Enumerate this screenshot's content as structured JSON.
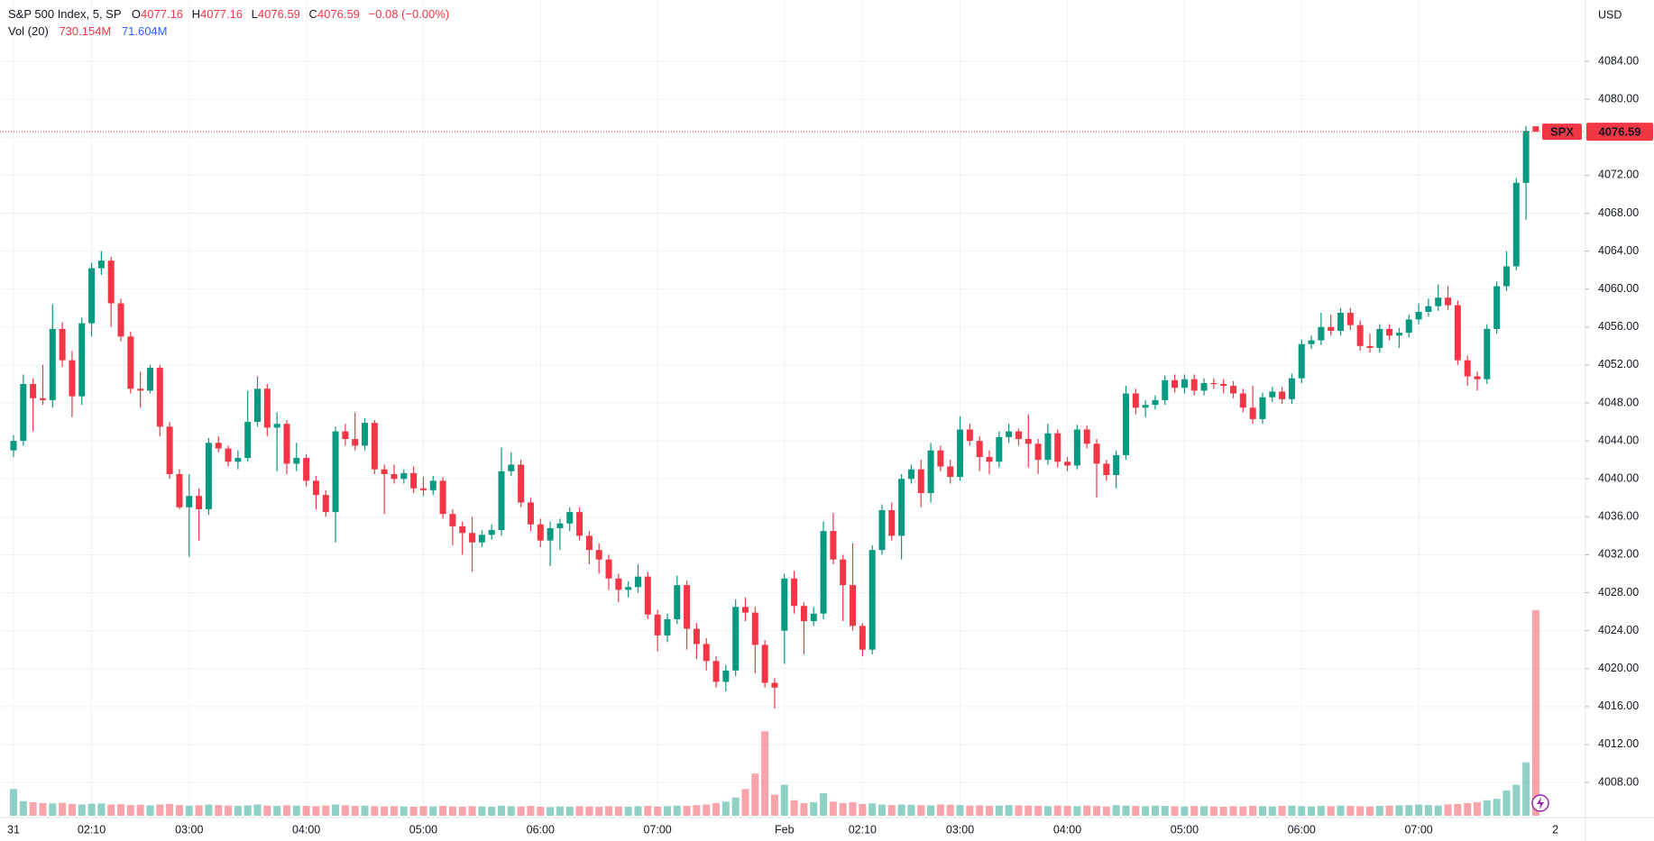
{
  "chart_data": {
    "type": "candlestick",
    "title": "S&P 500 Index, 5, SP",
    "ohlc_keys": [
      "O",
      "H",
      "L",
      "C"
    ],
    "change_label": "−0.08 (−0.00%)",
    "volume_title": "Vol (20)",
    "currency": "USD",
    "last_price_symbol": "SPX",
    "up_color": "#089981",
    "down_color": "#f23645",
    "ma_color": "#2962ff",
    "grid": true,
    "ylim": [
      4004.3,
      4089.9
    ],
    "yticks": [
      {
        "value": 4008,
        "label": "4008.00"
      },
      {
        "value": 4012,
        "label": "4012.00"
      },
      {
        "value": 4016,
        "label": "4016.00"
      },
      {
        "value": 4020,
        "label": "4020.00"
      },
      {
        "value": 4024,
        "label": "4024.00"
      },
      {
        "value": 4028,
        "label": "4028.00"
      },
      {
        "value": 4032,
        "label": "4032.00"
      },
      {
        "value": 4036,
        "label": "4036.00"
      },
      {
        "value": 4040,
        "label": "4040.00"
      },
      {
        "value": 4044,
        "label": "4044.00"
      },
      {
        "value": 4048,
        "label": "4048.00"
      },
      {
        "value": 4052,
        "label": "4052.00"
      },
      {
        "value": 4056,
        "label": "4056.00"
      },
      {
        "value": 4060,
        "label": "4060.00"
      },
      {
        "value": 4064,
        "label": "4064.00"
      },
      {
        "value": 4068,
        "label": "4068.00"
      },
      {
        "value": 4072,
        "label": "4072.00"
      },
      {
        "value": 4076,
        "label": "4076.00"
      },
      {
        "value": 4080,
        "label": "4080.00"
      },
      {
        "value": 4084,
        "label": "4084.00"
      }
    ],
    "categories": [
      "31",
      null,
      null,
      null,
      null,
      null,
      null,
      null,
      "02:10",
      null,
      null,
      null,
      null,
      null,
      null,
      null,
      null,
      null,
      "03:00",
      null,
      null,
      null,
      null,
      null,
      null,
      null,
      null,
      null,
      null,
      null,
      "04:00",
      null,
      null,
      null,
      null,
      null,
      null,
      null,
      null,
      null,
      null,
      null,
      "05:00",
      null,
      null,
      null,
      null,
      null,
      null,
      null,
      null,
      null,
      null,
      null,
      "06:00",
      null,
      null,
      null,
      null,
      null,
      null,
      null,
      null,
      null,
      null,
      null,
      "07:00",
      null,
      null,
      null,
      null,
      null,
      null,
      null,
      null,
      null,
      null,
      null,
      null,
      "Feb",
      null,
      null,
      null,
      null,
      null,
      null,
      null,
      "02:10",
      null,
      null,
      null,
      null,
      null,
      null,
      null,
      null,
      null,
      "03:00",
      null,
      null,
      null,
      null,
      null,
      null,
      null,
      null,
      null,
      null,
      "04:00",
      null,
      null,
      null,
      null,
      null,
      null,
      null,
      null,
      null,
      null,
      null,
      "05:00",
      null,
      null,
      null,
      null,
      null,
      null,
      null,
      null,
      null,
      null,
      null,
      "06:00",
      null,
      null,
      null,
      null,
      null,
      null,
      null,
      null,
      null,
      null,
      null,
      "07:00",
      null,
      null,
      null,
      null,
      null,
      null,
      null,
      null,
      null,
      null,
      null,
      null
    ],
    "trailing_label": "2",
    "ohlc": [
      [
        4043.0,
        4044.6,
        4042.3,
        4044.0
      ],
      [
        4044.0,
        4051.0,
        4043.5,
        4050.0
      ],
      [
        4050.0,
        4050.6,
        4045.0,
        4048.5
      ],
      [
        4048.5,
        4052.0,
        4047.8,
        4048.3
      ],
      [
        4048.3,
        4058.4,
        4047.5,
        4055.8
      ],
      [
        4055.8,
        4056.5,
        4051.8,
        4052.5
      ],
      [
        4052.5,
        4053.5,
        4046.5,
        4048.7
      ],
      [
        4048.7,
        4057.0,
        4047.8,
        4056.4
      ],
      [
        4056.4,
        4062.8,
        4055.0,
        4062.2
      ],
      [
        4062.2,
        4064.0,
        4061.5,
        4063.0
      ],
      [
        4063.0,
        4063.4,
        4056.0,
        4058.5
      ],
      [
        4058.5,
        4059.0,
        4054.5,
        4055.0
      ],
      [
        4055.0,
        4055.5,
        4049.0,
        4049.5
      ],
      [
        4049.5,
        4051.3,
        4047.5,
        4049.3
      ],
      [
        4049.3,
        4052.0,
        4049.0,
        4051.7
      ],
      [
        4051.7,
        4052.0,
        4044.5,
        4045.5
      ],
      [
        4045.5,
        4046.0,
        4040.0,
        4040.5
      ],
      [
        4040.5,
        4041.0,
        4036.8,
        4037.0
      ],
      [
        4037.0,
        4040.5,
        4031.8,
        4038.2
      ],
      [
        4038.2,
        4039.0,
        4033.5,
        4036.8
      ],
      [
        4036.8,
        4044.3,
        4036.2,
        4043.8
      ],
      [
        4043.8,
        4044.5,
        4042.8,
        4043.2
      ],
      [
        4043.2,
        4043.5,
        4041.3,
        4041.8
      ],
      [
        4041.8,
        4043.0,
        4041.0,
        4042.2
      ],
      [
        4042.2,
        4049.3,
        4041.8,
        4046.0
      ],
      [
        4046.0,
        4050.8,
        4045.5,
        4049.5
      ],
      [
        4049.5,
        4050.0,
        4044.5,
        4045.4
      ],
      [
        4045.4,
        4047.0,
        4040.8,
        4045.8
      ],
      [
        4045.8,
        4046.2,
        4040.5,
        4041.6
      ],
      [
        4041.6,
        4043.8,
        4040.8,
        4042.2
      ],
      [
        4042.2,
        4042.6,
        4039.2,
        4039.8
      ],
      [
        4039.8,
        4040.3,
        4036.8,
        4038.3
      ],
      [
        4038.3,
        4038.8,
        4036.0,
        4036.5
      ],
      [
        4036.5,
        4045.5,
        4033.3,
        4045.0
      ],
      [
        4045.0,
        4045.8,
        4043.5,
        4044.2
      ],
      [
        4044.2,
        4047.0,
        4043.0,
        4043.5
      ],
      [
        4043.5,
        4046.4,
        4043.0,
        4045.9
      ],
      [
        4045.9,
        4046.2,
        4040.5,
        4041.0
      ],
      [
        4041.0,
        4041.5,
        4036.3,
        4040.5
      ],
      [
        4040.5,
        4041.5,
        4039.5,
        4040.0
      ],
      [
        4040.0,
        4041.0,
        4039.5,
        4040.6
      ],
      [
        4040.6,
        4041.3,
        4038.5,
        4039.0
      ],
      [
        4039.0,
        4040.2,
        4038.2,
        4038.8
      ],
      [
        4038.8,
        4040.3,
        4038.3,
        4039.8
      ],
      [
        4039.8,
        4040.2,
        4035.8,
        4036.3
      ],
      [
        4036.3,
        4036.8,
        4033.0,
        4035.0
      ],
      [
        4035.0,
        4035.5,
        4032.0,
        4034.3
      ],
      [
        4034.3,
        4036.0,
        4030.2,
        4033.3
      ],
      [
        4033.3,
        4034.6,
        4032.8,
        4034.1
      ],
      [
        4034.1,
        4035.2,
        4033.6,
        4034.6
      ],
      [
        4034.6,
        4043.3,
        4034.0,
        4040.8
      ],
      [
        4040.8,
        4042.8,
        4040.3,
        4041.5
      ],
      [
        4041.5,
        4042.0,
        4037.0,
        4037.5
      ],
      [
        4037.5,
        4038.0,
        4034.5,
        4035.2
      ],
      [
        4035.2,
        4035.8,
        4032.8,
        4033.5
      ],
      [
        4033.5,
        4035.5,
        4030.8,
        4034.8
      ],
      [
        4034.8,
        4035.8,
        4032.5,
        4035.3
      ],
      [
        4035.3,
        4037.0,
        4034.5,
        4036.5
      ],
      [
        4036.5,
        4037.0,
        4033.5,
        4034.0
      ],
      [
        4034.0,
        4034.5,
        4031.0,
        4032.5
      ],
      [
        4032.5,
        4033.2,
        4030.0,
        4031.5
      ],
      [
        4031.5,
        4032.0,
        4028.3,
        4029.5
      ],
      [
        4029.5,
        4030.0,
        4027.0,
        4028.3
      ],
      [
        4028.3,
        4029.2,
        4027.5,
        4028.6
      ],
      [
        4028.6,
        4031.0,
        4028.0,
        4029.7
      ],
      [
        4029.7,
        4030.2,
        4025.2,
        4025.7
      ],
      [
        4025.7,
        4026.2,
        4021.8,
        4023.5
      ],
      [
        4023.5,
        4025.8,
        4022.8,
        4025.2
      ],
      [
        4025.2,
        4029.8,
        4024.7,
        4028.8
      ],
      [
        4028.8,
        4029.3,
        4022.0,
        4024.2
      ],
      [
        4024.2,
        4024.8,
        4021.0,
        4022.6
      ],
      [
        4022.6,
        4023.2,
        4019.8,
        4020.8
      ],
      [
        4020.8,
        4021.3,
        4018.0,
        4018.6
      ],
      [
        4018.6,
        4020.4,
        4017.6,
        4019.8
      ],
      [
        4019.8,
        4027.3,
        4019.2,
        4026.5
      ],
      [
        4026.5,
        4027.5,
        4025.0,
        4025.9
      ],
      [
        4025.9,
        4026.5,
        4019.5,
        4022.5
      ],
      [
        4022.5,
        4023.0,
        4018.0,
        4018.5
      ],
      [
        4018.5,
        4019.0,
        4015.8,
        4018.0
      ],
      [
        4024.0,
        4030.0,
        4020.5,
        4029.5
      ],
      [
        4029.5,
        4030.3,
        4025.8,
        4026.6
      ],
      [
        4026.6,
        4027.0,
        4021.5,
        4025.0
      ],
      [
        4025.0,
        4026.5,
        4024.5,
        4025.8
      ],
      [
        4025.8,
        4035.5,
        4025.2,
        4034.5
      ],
      [
        4034.5,
        4036.4,
        4031.0,
        4031.5
      ],
      [
        4031.5,
        4032.0,
        4025.0,
        4028.8
      ],
      [
        4028.8,
        4033.2,
        4024.0,
        4024.5
      ],
      [
        4024.5,
        4024.8,
        4021.3,
        4022.0
      ],
      [
        4022.0,
        4033.0,
        4021.5,
        4032.5
      ],
      [
        4032.5,
        4037.3,
        4032.0,
        4036.7
      ],
      [
        4036.7,
        4037.5,
        4033.5,
        4034.0
      ],
      [
        4034.0,
        4040.5,
        4031.5,
        4040.0
      ],
      [
        4040.0,
        4041.5,
        4039.5,
        4041.0
      ],
      [
        4041.0,
        4042.0,
        4037.0,
        4038.5
      ],
      [
        4038.5,
        4043.8,
        4037.5,
        4043.0
      ],
      [
        4043.0,
        4043.5,
        4040.8,
        4041.3
      ],
      [
        4041.3,
        4042.0,
        4039.5,
        4040.2
      ],
      [
        4040.2,
        4046.6,
        4039.8,
        4045.2
      ],
      [
        4045.2,
        4045.8,
        4043.5,
        4044.0
      ],
      [
        4044.0,
        4044.5,
        4040.8,
        4042.3
      ],
      [
        4042.3,
        4043.0,
        4040.5,
        4041.8
      ],
      [
        4041.8,
        4045.0,
        4041.2,
        4044.4
      ],
      [
        4044.4,
        4045.8,
        4043.8,
        4045.0
      ],
      [
        4045.0,
        4045.3,
        4043.5,
        4044.2
      ],
      [
        4044.2,
        4046.8,
        4041.2,
        4043.7
      ],
      [
        4043.7,
        4044.2,
        4040.5,
        4042.0
      ],
      [
        4042.0,
        4045.8,
        4041.5,
        4044.8
      ],
      [
        4044.8,
        4045.2,
        4041.2,
        4041.8
      ],
      [
        4041.8,
        4042.3,
        4040.8,
        4041.4
      ],
      [
        4041.4,
        4045.7,
        4041.0,
        4045.2
      ],
      [
        4045.2,
        4045.6,
        4043.2,
        4043.7
      ],
      [
        4043.7,
        4044.2,
        4038.0,
        4041.6
      ],
      [
        4041.6,
        4042.0,
        4039.8,
        4040.4
      ],
      [
        4040.4,
        4043.0,
        4039.0,
        4042.5
      ],
      [
        4042.5,
        4049.8,
        4042.0,
        4049.0
      ],
      [
        4049.0,
        4049.5,
        4046.8,
        4047.5
      ],
      [
        4047.5,
        4048.3,
        4046.5,
        4047.8
      ],
      [
        4047.8,
        4048.8,
        4047.3,
        4048.3
      ],
      [
        4048.3,
        4050.9,
        4047.8,
        4050.4
      ],
      [
        4050.4,
        4051.0,
        4049.1,
        4049.6
      ],
      [
        4049.6,
        4051.0,
        4049.0,
        4050.5
      ],
      [
        4050.5,
        4051.0,
        4048.8,
        4049.3
      ],
      [
        4049.3,
        4050.6,
        4048.8,
        4050.1
      ],
      [
        4050.1,
        4050.6,
        4049.5,
        4050.0
      ],
      [
        4050.0,
        4050.5,
        4049.0,
        4049.8
      ],
      [
        4049.8,
        4050.3,
        4048.5,
        4049.0
      ],
      [
        4049.0,
        4049.5,
        4047.0,
        4047.5
      ],
      [
        4047.5,
        4049.8,
        4045.8,
        4046.3
      ],
      [
        4046.3,
        4049.1,
        4045.8,
        4048.6
      ],
      [
        4048.6,
        4049.7,
        4048.1,
        4049.2
      ],
      [
        4049.2,
        4049.7,
        4047.9,
        4048.4
      ],
      [
        4048.4,
        4051.1,
        4047.9,
        4050.6
      ],
      [
        4050.6,
        4054.7,
        4050.1,
        4054.2
      ],
      [
        4054.2,
        4055.1,
        4053.7,
        4054.6
      ],
      [
        4054.6,
        4057.5,
        4054.1,
        4056.0
      ],
      [
        4056.0,
        4057.3,
        4055.1,
        4055.6
      ],
      [
        4055.6,
        4058.0,
        4055.1,
        4057.5
      ],
      [
        4057.5,
        4058.0,
        4055.7,
        4056.2
      ],
      [
        4056.2,
        4056.7,
        4053.5,
        4054.0
      ],
      [
        4054.0,
        4055.3,
        4053.3,
        4053.8
      ],
      [
        4053.8,
        4056.3,
        4053.3,
        4055.8
      ],
      [
        4055.8,
        4056.3,
        4054.6,
        4055.1
      ],
      [
        4055.1,
        4055.9,
        4053.8,
        4055.4
      ],
      [
        4055.4,
        4057.3,
        4054.9,
        4056.8
      ],
      [
        4056.8,
        4058.5,
        4056.3,
        4057.6
      ],
      [
        4057.6,
        4059.0,
        4057.1,
        4058.2
      ],
      [
        4058.2,
        4060.5,
        4057.7,
        4059.1
      ],
      [
        4059.1,
        4060.3,
        4057.8,
        4058.3
      ],
      [
        4058.3,
        4058.8,
        4052.0,
        4052.5
      ],
      [
        4052.5,
        4053.0,
        4049.8,
        4050.8
      ],
      [
        4050.8,
        4051.3,
        4049.3,
        4050.5
      ],
      [
        4050.5,
        4056.3,
        4050.0,
        4055.8
      ],
      [
        4055.8,
        4060.8,
        4055.3,
        4060.3
      ],
      [
        4060.3,
        4064.0,
        4059.8,
        4062.4
      ],
      [
        4062.4,
        4071.7,
        4062.0,
        4071.2
      ],
      [
        4071.2,
        4077.2,
        4067.3,
        4076.67
      ],
      [
        4077.16,
        4077.16,
        4076.59,
        4076.59
      ]
    ],
    "volume": {
      "values": [
        95,
        52,
        48,
        45,
        44,
        46,
        42,
        40,
        43,
        44,
        40,
        41,
        38,
        39,
        37,
        40,
        42,
        38,
        36,
        37,
        40,
        38,
        36,
        35,
        37,
        40,
        36,
        35,
        37,
        36,
        35,
        34,
        36,
        40,
        37,
        35,
        36,
        34,
        33,
        34,
        33,
        32,
        34,
        33,
        35,
        33,
        32,
        34,
        33,
        32,
        36,
        34,
        33,
        35,
        32,
        31,
        33,
        32,
        34,
        33,
        32,
        34,
        33,
        32,
        34,
        35,
        33,
        34,
        36,
        35,
        38,
        40,
        45,
        50,
        65,
        95,
        150,
        300,
        75,
        110,
        55,
        45,
        48,
        80,
        50,
        45,
        48,
        42,
        44,
        40,
        38,
        40,
        39,
        38,
        37,
        40,
        39,
        38,
        36,
        37,
        35,
        36,
        38,
        37,
        36,
        35,
        34,
        36,
        35,
        34,
        36,
        35,
        33,
        38,
        36,
        35,
        34,
        36,
        35,
        34,
        33,
        35,
        34,
        33,
        32,
        34,
        33,
        35,
        34,
        33,
        35,
        36,
        34,
        33,
        35,
        34,
        36,
        35,
        34,
        33,
        35,
        36,
        37,
        38,
        40,
        38,
        36,
        40,
        42,
        45,
        48,
        55,
        60,
        90,
        110,
        190,
        730.154
      ],
      "last_label": "730.154M",
      "ma_label": "71.604M",
      "vlim": [
        0,
        1460
      ]
    }
  }
}
